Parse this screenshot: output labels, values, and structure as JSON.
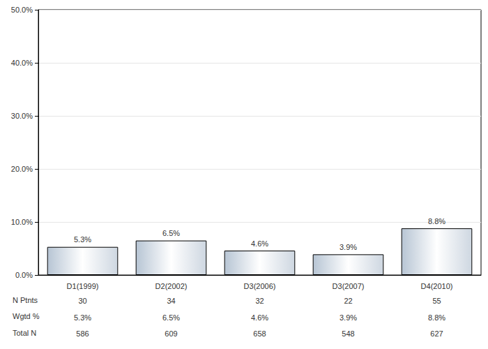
{
  "chart_data": {
    "type": "bar",
    "categories": [
      "D1(1999)",
      "D2(2002)",
      "D3(2006)",
      "D3(2007)",
      "D4(2010)"
    ],
    "values": [
      5.3,
      6.5,
      4.6,
      3.9,
      8.8
    ],
    "value_labels": [
      "5.3%",
      "6.5%",
      "4.6%",
      "3.9%",
      "8.8%"
    ],
    "data_labels": true,
    "color": "#b4c2d2",
    "ylim": [
      0,
      50
    ],
    "yticks": [
      {
        "value": 0,
        "label": "0.0%"
      },
      {
        "value": 10,
        "label": "10.0%"
      },
      {
        "value": 20,
        "label": "20.0%"
      },
      {
        "value": 30,
        "label": "30.0%"
      },
      {
        "value": 40,
        "label": "40.0%"
      },
      {
        "value": 50,
        "label": "50.0%"
      }
    ],
    "grid": true,
    "table": {
      "rows": [
        {
          "label": "N Ptnts",
          "cells": [
            "30",
            "34",
            "32",
            "22",
            "55"
          ]
        },
        {
          "label": "Wgtd %",
          "cells": [
            "5.3%",
            "6.5%",
            "4.6%",
            "3.9%",
            "8.8%"
          ]
        },
        {
          "label": "Total N",
          "cells": [
            "586",
            "609",
            "658",
            "548",
            "627"
          ]
        }
      ]
    }
  }
}
